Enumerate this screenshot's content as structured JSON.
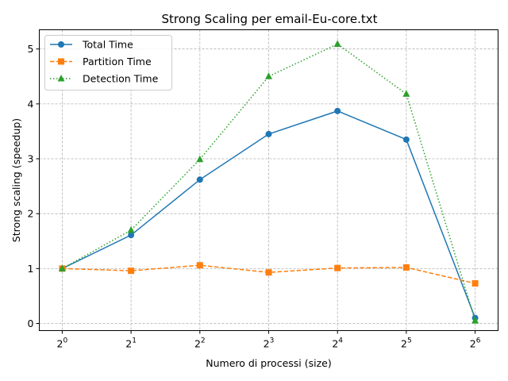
{
  "chart_data": {
    "type": "line",
    "title": "Strong Scaling per email-Eu-core.txt",
    "xlabel": "Numero di processi (size)",
    "ylabel": "Strong scaling (speedup)",
    "x_scale": "log2",
    "x": [
      1,
      2,
      4,
      8,
      16,
      32,
      64
    ],
    "x_tick_labels": [
      {
        "base": "2",
        "exp": "0"
      },
      {
        "base": "2",
        "exp": "1"
      },
      {
        "base": "2",
        "exp": "2"
      },
      {
        "base": "2",
        "exp": "3"
      },
      {
        "base": "2",
        "exp": "4"
      },
      {
        "base": "2",
        "exp": "5"
      },
      {
        "base": "2",
        "exp": "6"
      }
    ],
    "y_ticks": [
      0,
      1,
      2,
      3,
      4,
      5
    ],
    "ylim": [
      -0.13,
      5.35
    ],
    "grid": true,
    "legend_position": "top-left",
    "series": [
      {
        "name": "Total Time",
        "values": [
          1.0,
          1.61,
          2.62,
          3.45,
          3.87,
          3.35,
          0.1
        ],
        "color": "#1f77b4",
        "linestyle": "solid",
        "marker": "circle"
      },
      {
        "name": "Partition Time",
        "values": [
          1.0,
          0.96,
          1.06,
          0.93,
          1.01,
          1.02,
          0.73
        ],
        "color": "#ff7f0e",
        "linestyle": "dashed",
        "marker": "square"
      },
      {
        "name": "Detection Time",
        "values": [
          1.0,
          1.7,
          2.99,
          4.5,
          5.09,
          4.18,
          0.05
        ],
        "color": "#2ca02c",
        "linestyle": "dotted",
        "marker": "triangle"
      }
    ]
  }
}
